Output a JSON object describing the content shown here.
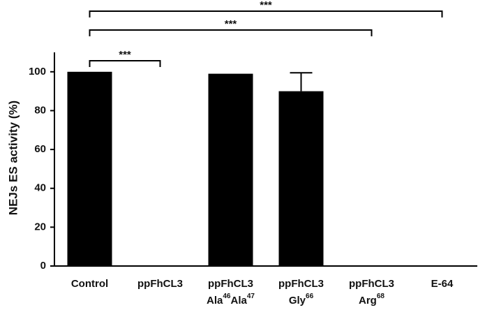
{
  "chart_data": {
    "type": "bar",
    "y_label": "NEJs ES activity (%)",
    "categories": [
      [
        [
          "Control"
        ]
      ],
      [
        [
          "ppFhCL3"
        ]
      ],
      [
        [
          "ppFhCL3"
        ],
        [
          "Ala",
          {
            "sup": "46"
          },
          "Ala",
          {
            "sup": "47"
          }
        ]
      ],
      [
        [
          "ppFhCL3"
        ],
        [
          "Gly",
          {
            "sup": "66"
          }
        ]
      ],
      [
        [
          "ppFhCL3"
        ],
        [
          "Arg",
          {
            "sup": "68"
          }
        ]
      ],
      [
        [
          "E-64"
        ]
      ]
    ],
    "values": [
      100,
      0,
      99,
      90,
      0,
      0
    ],
    "errors": [
      null,
      null,
      null,
      9.5,
      null,
      null
    ],
    "color": "#000000",
    "ylim": [
      0,
      110
    ],
    "yticks": [
      0,
      20,
      40,
      60,
      80,
      100
    ],
    "comparisons": [
      {
        "from": 0,
        "to": 1,
        "label": "***"
      },
      {
        "from": 0,
        "to": 4,
        "label": "***"
      },
      {
        "from": 0,
        "to": 5,
        "label": "***"
      }
    ]
  }
}
